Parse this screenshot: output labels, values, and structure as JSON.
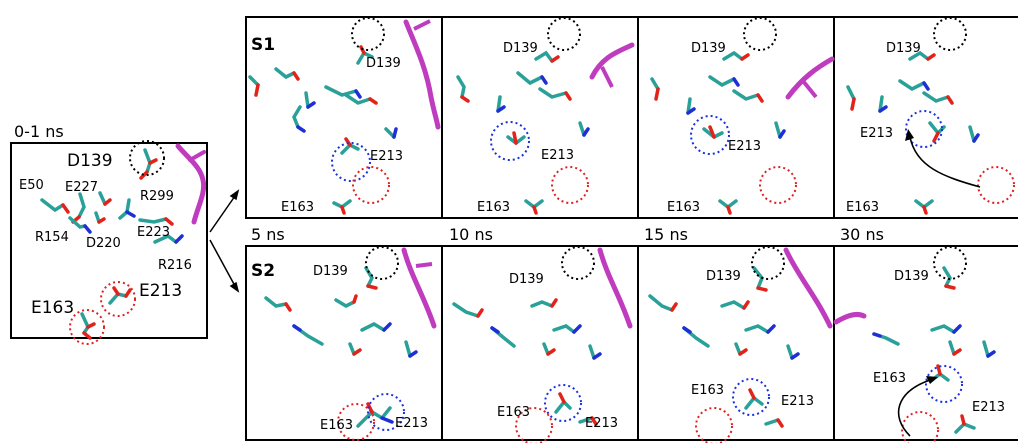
{
  "initial_panel": {
    "time_label": "0-1 ns",
    "residue_labels": [
      "D139",
      "E50",
      "E227",
      "R299",
      "R154",
      "D220",
      "E223",
      "R216",
      "E163",
      "E213"
    ]
  },
  "rows": [
    {
      "label": "S1",
      "panels": [
        {
          "residue_labels": [
            "D139",
            "E213",
            "E163"
          ],
          "arrow": false
        },
        {
          "residue_labels": [
            "D139",
            "E213",
            "E163"
          ],
          "arrow": false
        },
        {
          "residue_labels": [
            "D139",
            "E213",
            "E163"
          ],
          "arrow": false
        },
        {
          "residue_labels": [
            "D139",
            "E213",
            "E163"
          ],
          "arrow": true
        }
      ]
    },
    {
      "label": "S2",
      "panels": [
        {
          "residue_labels": [
            "D139",
            "E163",
            "E213"
          ],
          "arrow": false
        },
        {
          "residue_labels": [
            "D139",
            "E163",
            "E213"
          ],
          "arrow": false
        },
        {
          "residue_labels": [
            "D139",
            "E163",
            "E213"
          ],
          "arrow": false
        },
        {
          "residue_labels": [
            "D139",
            "E163",
            "E213"
          ],
          "arrow": true
        }
      ]
    }
  ],
  "time_labels": [
    "5 ns",
    "10 ns",
    "15 ns",
    "30 ns"
  ],
  "colors": {
    "carbon": "#2aa198",
    "carbon_light": "#4fc3c0",
    "oxygen": "#e2231a",
    "nitrogen": "#1f2fd6",
    "membrane": "#c03cbf",
    "circle_black": "#000000",
    "circle_blue": "#1a2fe0",
    "circle_red": "#e02020"
  }
}
